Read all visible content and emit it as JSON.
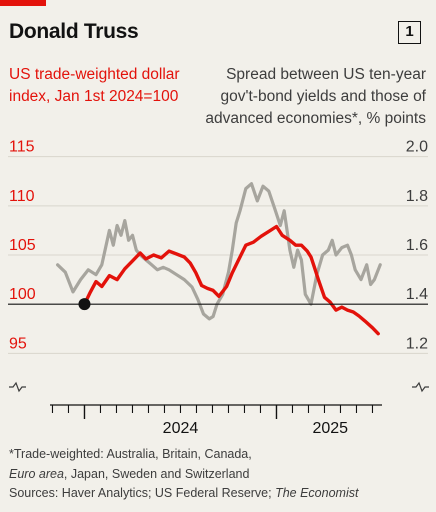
{
  "header": {
    "title": "Donald Truss",
    "chart_number": "1"
  },
  "chart_data": {
    "type": "line",
    "title": "Donald Truss",
    "left_axis": {
      "label": "US trade-weighted dollar index, Jan 1st 2024=100",
      "ticks": [
        95,
        100,
        105,
        110,
        115
      ],
      "tick_labels": [
        "95",
        "100",
        "105",
        "110",
        "115"
      ],
      "range": [
        93,
        117
      ],
      "color": "#e3120b"
    },
    "right_axis": {
      "label": "Spread between US ten-year gov't-bond yields and those of advanced economies*, % points",
      "ticks": [
        1.2,
        1.4,
        1.6,
        1.8,
        2.0
      ],
      "tick_labels": [
        "1.2",
        "1.4",
        "1.6",
        "1.8",
        "2.0"
      ],
      "range": [
        1.16,
        2.04
      ],
      "color": "#3d3d3d"
    },
    "x_axis": {
      "start": 2023.81,
      "end": 2025.56,
      "year_labels": [
        "2024",
        "2025"
      ]
    },
    "baseline": {
      "value": 100,
      "marker_x": 2024.0
    },
    "grid": true,
    "series": [
      {
        "name": "US trade-weighted dollar index",
        "axis": "left",
        "color": "#e3120b",
        "points": [
          [
            2024.0,
            100.0
          ],
          [
            2024.03,
            101.2
          ],
          [
            2024.06,
            102.3
          ],
          [
            2024.09,
            101.8
          ],
          [
            2024.13,
            102.9
          ],
          [
            2024.17,
            102.5
          ],
          [
            2024.21,
            103.6
          ],
          [
            2024.25,
            104.4
          ],
          [
            2024.29,
            105.2
          ],
          [
            2024.32,
            104.6
          ],
          [
            2024.36,
            105.0
          ],
          [
            2024.4,
            104.7
          ],
          [
            2024.44,
            105.4
          ],
          [
            2024.48,
            105.1
          ],
          [
            2024.52,
            104.8
          ],
          [
            2024.55,
            104.2
          ],
          [
            2024.58,
            103.2
          ],
          [
            2024.61,
            101.9
          ],
          [
            2024.64,
            101.6
          ],
          [
            2024.67,
            101.4
          ],
          [
            2024.7,
            100.8
          ],
          [
            2024.74,
            101.8
          ],
          [
            2024.77,
            103.2
          ],
          [
            2024.8,
            104.4
          ],
          [
            2024.84,
            106.0
          ],
          [
            2024.88,
            106.3
          ],
          [
            2024.92,
            106.9
          ],
          [
            2024.96,
            107.4
          ],
          [
            2025.0,
            107.9
          ],
          [
            2025.03,
            107.0
          ],
          [
            2025.07,
            106.5
          ],
          [
            2025.1,
            106.0
          ],
          [
            2025.13,
            106.0
          ],
          [
            2025.16,
            105.4
          ],
          [
            2025.18,
            104.8
          ],
          [
            2025.2,
            103.6
          ],
          [
            2025.22,
            102.4
          ],
          [
            2025.25,
            100.7
          ],
          [
            2025.28,
            100.2
          ],
          [
            2025.31,
            99.4
          ],
          [
            2025.34,
            99.7
          ],
          [
            2025.37,
            99.4
          ],
          [
            2025.4,
            99.2
          ],
          [
            2025.43,
            98.8
          ],
          [
            2025.46,
            98.3
          ],
          [
            2025.5,
            97.6
          ],
          [
            2025.53,
            97.0
          ]
        ]
      },
      {
        "name": "Spread between US ten-year gov't-bond yields and those of advanced economies",
        "axis": "right",
        "color": "#a7a59e",
        "points": [
          [
            2023.86,
            1.56
          ],
          [
            2023.9,
            1.53
          ],
          [
            2023.94,
            1.45
          ],
          [
            2023.98,
            1.5
          ],
          [
            2024.02,
            1.54
          ],
          [
            2024.06,
            1.52
          ],
          [
            2024.09,
            1.56
          ],
          [
            2024.11,
            1.63
          ],
          [
            2024.13,
            1.7
          ],
          [
            2024.15,
            1.64
          ],
          [
            2024.17,
            1.72
          ],
          [
            2024.19,
            1.68
          ],
          [
            2024.21,
            1.74
          ],
          [
            2024.23,
            1.66
          ],
          [
            2024.25,
            1.68
          ],
          [
            2024.27,
            1.62
          ],
          [
            2024.29,
            1.6
          ],
          [
            2024.32,
            1.58
          ],
          [
            2024.35,
            1.56
          ],
          [
            2024.38,
            1.54
          ],
          [
            2024.41,
            1.55
          ],
          [
            2024.44,
            1.54
          ],
          [
            2024.48,
            1.52
          ],
          [
            2024.52,
            1.5
          ],
          [
            2024.56,
            1.47
          ],
          [
            2024.59,
            1.42
          ],
          [
            2024.62,
            1.36
          ],
          [
            2024.65,
            1.34
          ],
          [
            2024.67,
            1.35
          ],
          [
            2024.69,
            1.4
          ],
          [
            2024.72,
            1.44
          ],
          [
            2024.75,
            1.53
          ],
          [
            2024.77,
            1.62
          ],
          [
            2024.79,
            1.73
          ],
          [
            2024.81,
            1.78
          ],
          [
            2024.84,
            1.87
          ],
          [
            2024.87,
            1.89
          ],
          [
            2024.9,
            1.82
          ],
          [
            2024.93,
            1.88
          ],
          [
            2024.96,
            1.86
          ],
          [
            2024.99,
            1.79
          ],
          [
            2025.02,
            1.72
          ],
          [
            2025.04,
            1.78
          ],
          [
            2025.07,
            1.62
          ],
          [
            2025.09,
            1.55
          ],
          [
            2025.11,
            1.62
          ],
          [
            2025.13,
            1.58
          ],
          [
            2025.15,
            1.44
          ],
          [
            2025.18,
            1.4
          ],
          [
            2025.21,
            1.52
          ],
          [
            2025.24,
            1.6
          ],
          [
            2025.27,
            1.62
          ],
          [
            2025.29,
            1.66
          ],
          [
            2025.31,
            1.6
          ],
          [
            2025.34,
            1.63
          ],
          [
            2025.37,
            1.64
          ],
          [
            2025.39,
            1.6
          ],
          [
            2025.41,
            1.54
          ],
          [
            2025.44,
            1.5
          ],
          [
            2025.47,
            1.56
          ],
          [
            2025.49,
            1.48
          ],
          [
            2025.51,
            1.5
          ],
          [
            2025.54,
            1.56
          ]
        ]
      }
    ]
  },
  "footnote": {
    "line1": "*Trade-weighted: Australia, Britain, Canada,",
    "line2_italic": "Euro area",
    "line2_rest": ", Japan, Sweden and Switzerland",
    "line3": "Sources: Haver Analytics; US Federal Reserve; ",
    "line3_italic": "The Economist"
  }
}
